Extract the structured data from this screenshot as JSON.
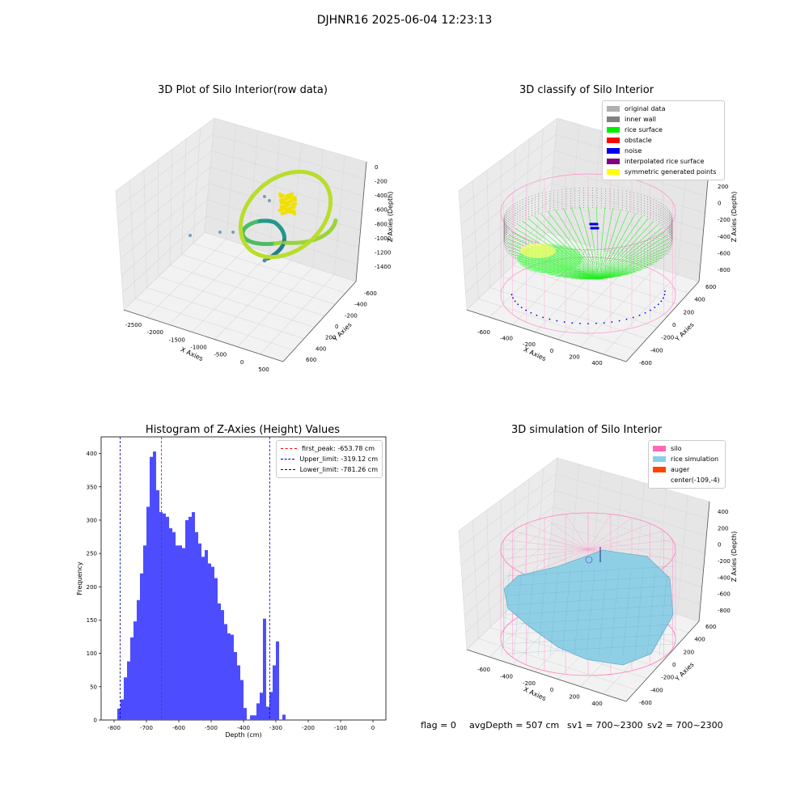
{
  "page": {
    "suptitle": "DJHNR16 2025-06-04 12:23:13"
  },
  "panel_raw": {
    "title": "3D Plot of Silo Interior(row data)",
    "xlabel": "X Axies",
    "ylabel": "Y Axies",
    "zlabel": "Z Axies (Depth)",
    "x_ticks": [
      "-2500",
      "-2000",
      "-1500",
      "-1000",
      "-500",
      "0",
      "500"
    ],
    "y_ticks": [
      "-600",
      "-400",
      "-200",
      "0",
      "200",
      "400",
      "600"
    ],
    "z_ticks": [
      "0",
      "-200",
      "-400",
      "-600",
      "-800",
      "-1000",
      "-1200",
      "-1400"
    ]
  },
  "panel_classify": {
    "title": "3D classify of Silo Interior",
    "xlabel": "X Axies",
    "ylabel": "Y Axies",
    "zlabel": "Z Axies (Depth)",
    "x_ticks": [
      "-600",
      "-400",
      "-200",
      "0",
      "200",
      "400"
    ],
    "y_ticks": [
      "-600",
      "-400",
      "-200",
      "0",
      "200",
      "400",
      "600"
    ],
    "z_ticks": [
      "200",
      "0",
      "-200",
      "-400",
      "-600",
      "-800"
    ],
    "legend": [
      {
        "label": "original data",
        "color": "#b0b0b0"
      },
      {
        "label": "inner wall",
        "color": "#808080"
      },
      {
        "label": "rice surface",
        "color": "#00ee00"
      },
      {
        "label": "obstacle",
        "color": "#ff0000"
      },
      {
        "label": "noise",
        "color": "#0000ee"
      },
      {
        "label": "interpolated rice surface",
        "color": "#800080"
      },
      {
        "label": "symmetric generated points",
        "color": "#ffff00"
      }
    ]
  },
  "panel_sim": {
    "title": "3D simulation of Silo Interior",
    "xlabel": "X Axies",
    "ylabel": "Y Axies",
    "zlabel": "Z Axies (Depth)",
    "x_ticks": [
      "-600",
      "-400",
      "-200",
      "0",
      "200",
      "400"
    ],
    "y_ticks": [
      "-600",
      "-400",
      "-200",
      "0",
      "200",
      "400",
      "600"
    ],
    "z_ticks": [
      "400",
      "200",
      "0",
      "-200",
      "-400",
      "-600",
      "-800"
    ],
    "legend": [
      {
        "label": "silo",
        "color": "#ff69b4"
      },
      {
        "label": "rice simulation",
        "color": "#87ceeb"
      },
      {
        "label": "auger",
        "color": "#ff4500"
      },
      {
        "label": "center(-109,-4)",
        "color": ""
      }
    ]
  },
  "status": {
    "flag": "flag = 0",
    "avg_depth": "avgDepth = 507 cm",
    "sv1": "sv1 = 700~2300",
    "sv2": "sv2 = 700~2300"
  },
  "chart_data": [
    {
      "type": "histogram",
      "title": "Histogram of Z-Axies (Height) Values",
      "xlabel": "Depth (cm)",
      "ylabel": "Frequency",
      "bin_width": 10,
      "bin_start": -790,
      "values": [
        17,
        31,
        64,
        88,
        124,
        148,
        180,
        220,
        262,
        320,
        395,
        403,
        345,
        312,
        310,
        305,
        288,
        282,
        262,
        262,
        258,
        300,
        305,
        312,
        282,
        265,
        245,
        255,
        235,
        230,
        213,
        175,
        165,
        144,
        130,
        128,
        102,
        82,
        60,
        18,
        0,
        7,
        7,
        25,
        41,
        152,
        20,
        42,
        82,
        118,
        0,
        8
      ],
      "xlim": [
        -840,
        40
      ],
      "ylim": [
        0,
        425
      ],
      "x_ticks": [
        -800,
        -700,
        -600,
        -500,
        -400,
        -300,
        -200,
        -100,
        0
      ],
      "y_ticks": [
        0,
        50,
        100,
        150,
        200,
        250,
        300,
        350,
        400
      ],
      "bar_color": "#4d4dff",
      "vlines": [
        {
          "label": "first_peak: -653.78 cm",
          "x": -653.78,
          "color": "#ff0000"
        },
        {
          "label": "Upper_limit: -319.12 cm",
          "x": -319.12,
          "color": "#0000aa"
        },
        {
          "label": "Lower_limit: -781.26 cm",
          "x": -781.26,
          "color": "#0000aa"
        }
      ]
    }
  ]
}
